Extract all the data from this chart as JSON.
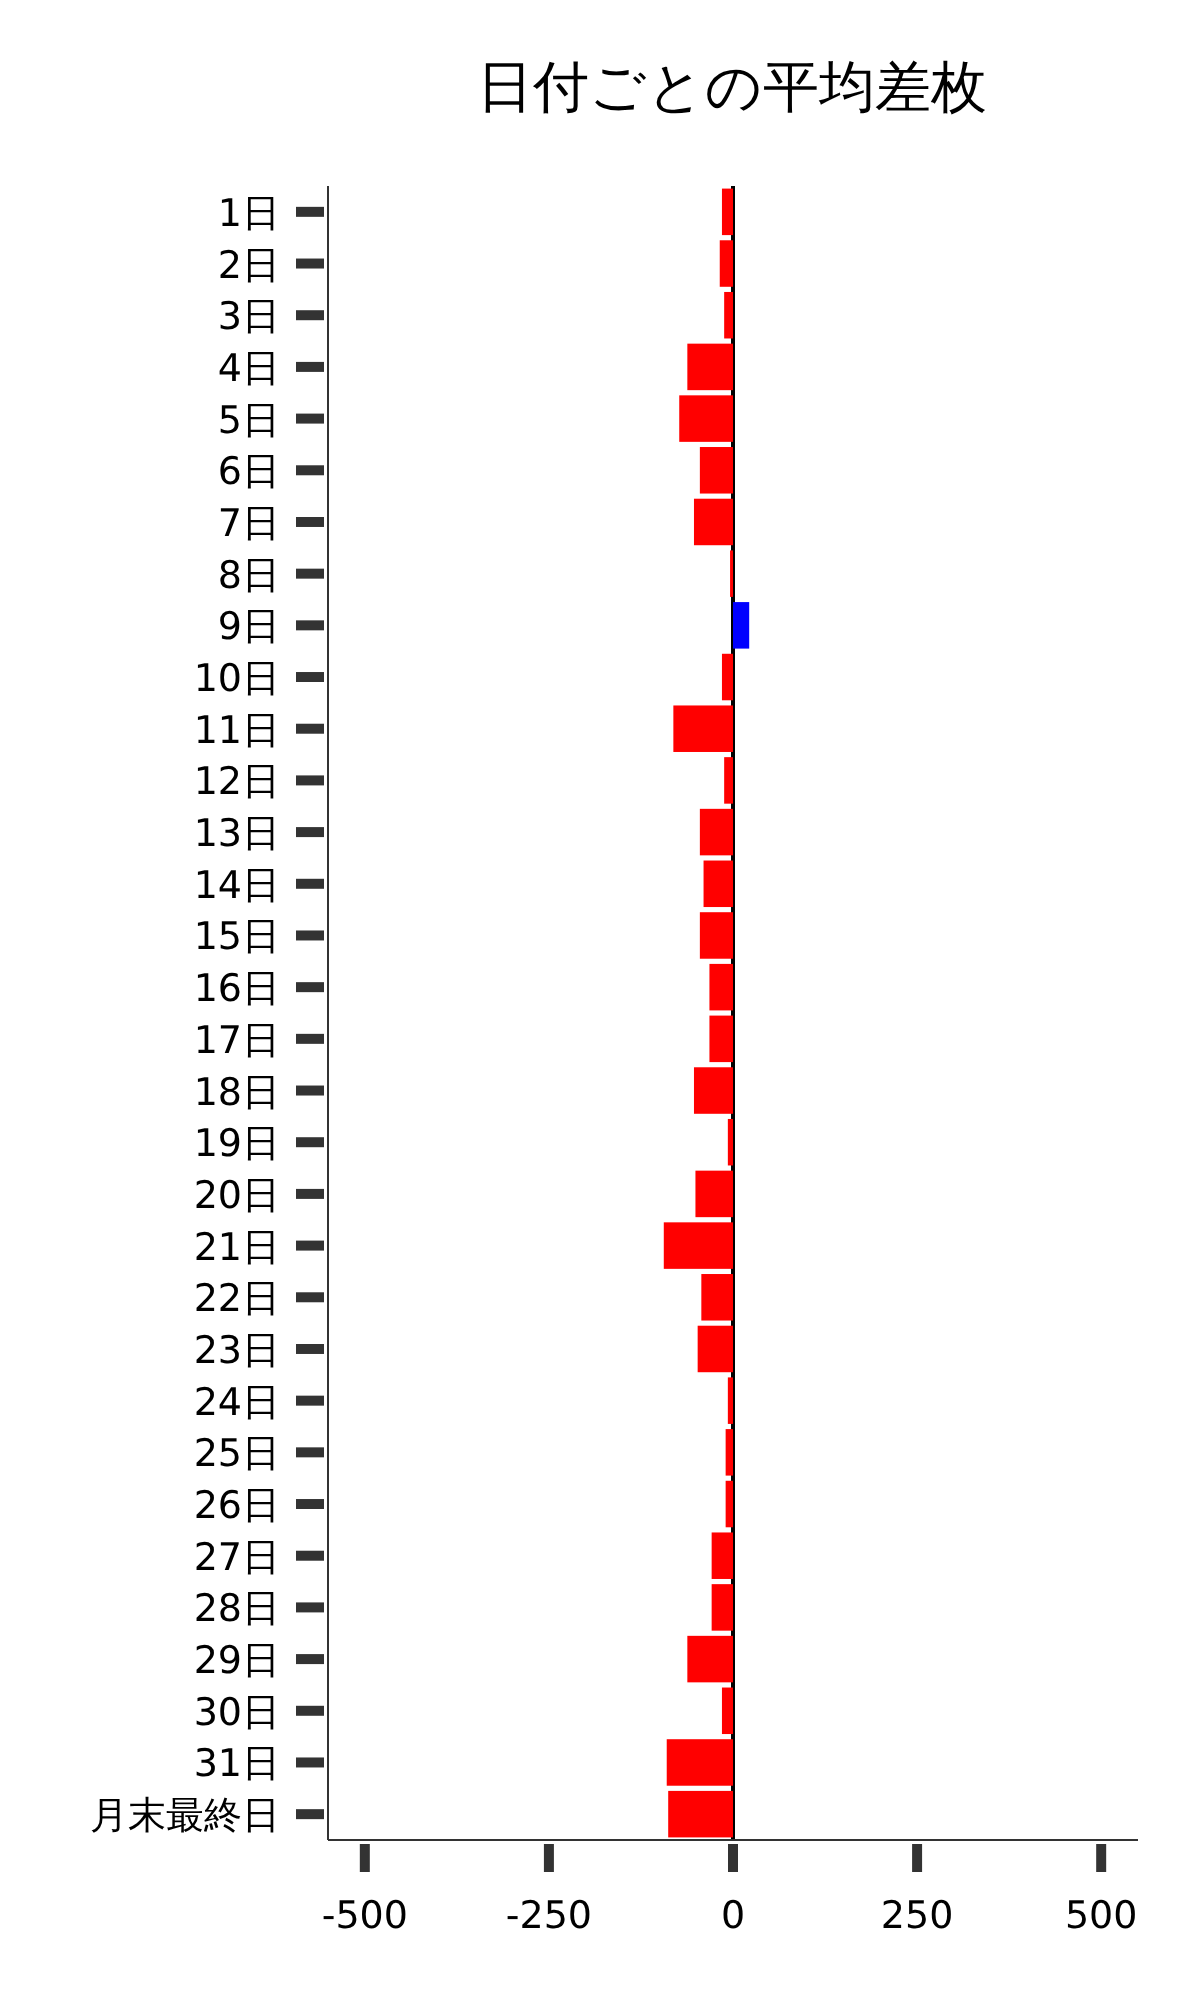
{
  "chart_data": {
    "type": "bar",
    "orientation": "horizontal",
    "title": "日付ごとの平均差枚",
    "categories": [
      "1日",
      "2日",
      "3日",
      "4日",
      "5日",
      "6日",
      "7日",
      "8日",
      "9日",
      "10日",
      "11日",
      "12日",
      "13日",
      "14日",
      "15日",
      "16日",
      "17日",
      "18日",
      "19日",
      "20日",
      "21日",
      "22日",
      "23日",
      "24日",
      "25日",
      "26日",
      "27日",
      "28日",
      "29日",
      "30日",
      "31日",
      "月末最終日"
    ],
    "values": [
      -15,
      -18,
      -12,
      -62,
      -73,
      -45,
      -53,
      -4,
      22,
      -15,
      -81,
      -12,
      -45,
      -40,
      -45,
      -32,
      -32,
      -53,
      -7,
      -51,
      -94,
      -43,
      -48,
      -7,
      -10,
      -10,
      -29,
      -29,
      -62,
      -15,
      -90,
      -88
    ],
    "colors": [
      "#ff0000",
      "#ff0000",
      "#ff0000",
      "#ff0000",
      "#ff0000",
      "#ff0000",
      "#ff0000",
      "#ff0000",
      "#0000ff",
      "#ff0000",
      "#ff0000",
      "#ff0000",
      "#ff0000",
      "#ff0000",
      "#ff0000",
      "#ff0000",
      "#ff0000",
      "#ff0000",
      "#ff0000",
      "#ff0000",
      "#ff0000",
      "#ff0000",
      "#ff0000",
      "#ff0000",
      "#ff0000",
      "#ff0000",
      "#ff0000",
      "#ff0000",
      "#ff0000",
      "#ff0000",
      "#ff0000",
      "#ff0000"
    ],
    "xlim": [
      -550,
      550
    ],
    "xticks": [
      -500,
      -250,
      0,
      250,
      500
    ],
    "ref_lines": [
      {
        "axis": "x",
        "value": 0,
        "color": "#000000"
      }
    ],
    "grid": false
  }
}
